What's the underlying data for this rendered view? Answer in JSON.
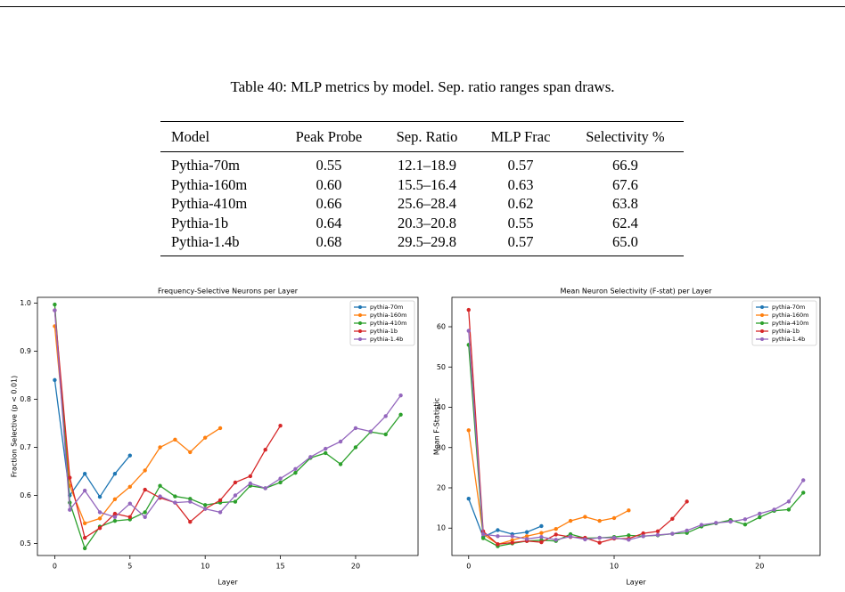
{
  "table": {
    "caption": "Table 40: MLP metrics by model. Sep. ratio ranges span draws.",
    "columns": [
      "Model",
      "Peak Probe",
      "Sep. Ratio",
      "MLP Frac",
      "Selectivity %"
    ],
    "rows": [
      [
        "Pythia-70m",
        "0.55",
        "12.1–18.9",
        "0.57",
        "66.9"
      ],
      [
        "Pythia-160m",
        "0.60",
        "15.5–16.4",
        "0.63",
        "67.6"
      ],
      [
        "Pythia-410m",
        "0.66",
        "25.6–28.4",
        "0.62",
        "63.8"
      ],
      [
        "Pythia-1b",
        "0.64",
        "20.3–20.8",
        "0.55",
        "62.4"
      ],
      [
        "Pythia-1.4b",
        "0.68",
        "29.5–29.8",
        "0.57",
        "65.0"
      ]
    ]
  },
  "chart_data": [
    {
      "type": "line",
      "title": "Frequency-Selective Neurons per Layer",
      "x_label": "Layer",
      "y_label": "Fraction Selective (p < 0.01)",
      "x": [
        0,
        1,
        2,
        3,
        4,
        5,
        6,
        7,
        8,
        9,
        10,
        11,
        12,
        13,
        14,
        15,
        16,
        17,
        18,
        19,
        20,
        21,
        22,
        23
      ],
      "xlim": [
        -1.15,
        24.15
      ],
      "xticks": [
        0,
        5,
        10,
        15,
        20
      ],
      "ylim": [
        0.475,
        1.012
      ],
      "yticks": [
        0.5,
        0.6,
        0.7,
        0.8,
        0.9,
        {
          "value": 1,
          "label": "1.0"
        }
      ],
      "legend": "upper right",
      "series": [
        {
          "name": "pythia-70m",
          "color": "#1f77b4",
          "values": [
            0.84,
            0.6,
            0.645,
            0.597,
            0.645,
            0.683,
            null,
            null,
            null,
            null,
            null,
            null,
            null,
            null,
            null,
            null,
            null,
            null,
            null,
            null,
            null,
            null,
            null,
            null
          ]
        },
        {
          "name": "pythia-160m",
          "color": "#ff7f0e",
          "values": [
            0.952,
            0.62,
            0.542,
            0.552,
            0.592,
            0.618,
            0.652,
            0.7,
            0.716,
            0.69,
            0.72,
            0.74,
            null,
            null,
            null,
            null,
            null,
            null,
            null,
            null,
            null,
            null,
            null,
            null
          ]
        },
        {
          "name": "pythia-410m",
          "color": "#2ca02c",
          "values": [
            0.997,
            0.585,
            0.49,
            0.535,
            0.547,
            0.55,
            0.565,
            0.62,
            0.598,
            0.593,
            0.58,
            0.585,
            0.587,
            0.62,
            0.615,
            0.627,
            0.647,
            0.678,
            0.688,
            0.665,
            0.7,
            0.732,
            0.727,
            0.768
          ]
        },
        {
          "name": "pythia-1b",
          "color": "#d62728",
          "values": [
            0.985,
            0.637,
            0.512,
            0.532,
            0.562,
            0.555,
            0.612,
            0.595,
            0.585,
            0.545,
            0.572,
            0.59,
            0.627,
            0.64,
            0.695,
            0.745,
            null,
            null,
            null,
            null,
            null,
            null,
            null,
            null
          ]
        },
        {
          "name": "pythia-1.4b",
          "color": "#9467bd",
          "values": [
            0.985,
            0.57,
            0.61,
            0.565,
            0.555,
            0.583,
            0.555,
            0.598,
            0.585,
            0.587,
            0.572,
            0.565,
            0.6,
            0.625,
            0.615,
            0.635,
            0.655,
            0.68,
            0.697,
            0.712,
            0.74,
            0.733,
            0.765,
            0.808
          ]
        }
      ]
    },
    {
      "type": "line",
      "title": "Mean Neuron Selectivity (F-stat) per Layer",
      "x_label": "Layer",
      "y_label": "Mean F-Statistic",
      "x": [
        0,
        1,
        2,
        3,
        4,
        5,
        6,
        7,
        8,
        9,
        10,
        11,
        12,
        13,
        14,
        15,
        16,
        17,
        18,
        19,
        20,
        21,
        22,
        23
      ],
      "xlim": [
        -1.15,
        24.15
      ],
      "xticks": [
        0,
        10,
        20
      ],
      "ylim": [
        3.2,
        67.3
      ],
      "yticks": [
        10,
        20,
        30,
        40,
        50,
        60
      ],
      "legend": "upper right",
      "series": [
        {
          "name": "pythia-70m",
          "color": "#1f77b4",
          "values": [
            17.3,
            7.8,
            9.5,
            8.5,
            9,
            10.5,
            null,
            null,
            null,
            null,
            null,
            null,
            null,
            null,
            null,
            null,
            null,
            null,
            null,
            null,
            null,
            null,
            null,
            null
          ]
        },
        {
          "name": "pythia-160m",
          "color": "#ff7f0e",
          "values": [
            34.3,
            8.5,
            6,
            7,
            8,
            8.8,
            9.8,
            11.8,
            12.8,
            11.8,
            12.5,
            14.4,
            null,
            null,
            null,
            null,
            null,
            null,
            null,
            null,
            null,
            null,
            null,
            null
          ]
        },
        {
          "name": "pythia-410m",
          "color": "#2ca02c",
          "values": [
            55.5,
            7.5,
            5.5,
            6.2,
            6.8,
            7,
            6.8,
            8.5,
            7.5,
            7.6,
            7.8,
            8.2,
            8,
            8.2,
            8.6,
            8.8,
            10.4,
            11.2,
            12,
            10.9,
            12.7,
            14.3,
            14.6,
            18.8
          ]
        },
        {
          "name": "pythia-1b",
          "color": "#d62728",
          "values": [
            64.2,
            9.2,
            6,
            6.4,
            6.8,
            6.5,
            8.4,
            7.8,
            7.6,
            6.4,
            7.4,
            7.4,
            8.7,
            9.2,
            12.3,
            16.6,
            null,
            null,
            null,
            null,
            null,
            null,
            null,
            null
          ]
        },
        {
          "name": "pythia-1.4b",
          "color": "#9467bd",
          "values": [
            59,
            8.5,
            8,
            8,
            7.3,
            7.8,
            7.1,
            7.9,
            7.2,
            7.6,
            7.6,
            7.1,
            8,
            8.3,
            8.6,
            9.4,
            10.8,
            11.3,
            11.6,
            12.2,
            13.6,
            14.6,
            16.6,
            21.9
          ]
        }
      ]
    }
  ]
}
